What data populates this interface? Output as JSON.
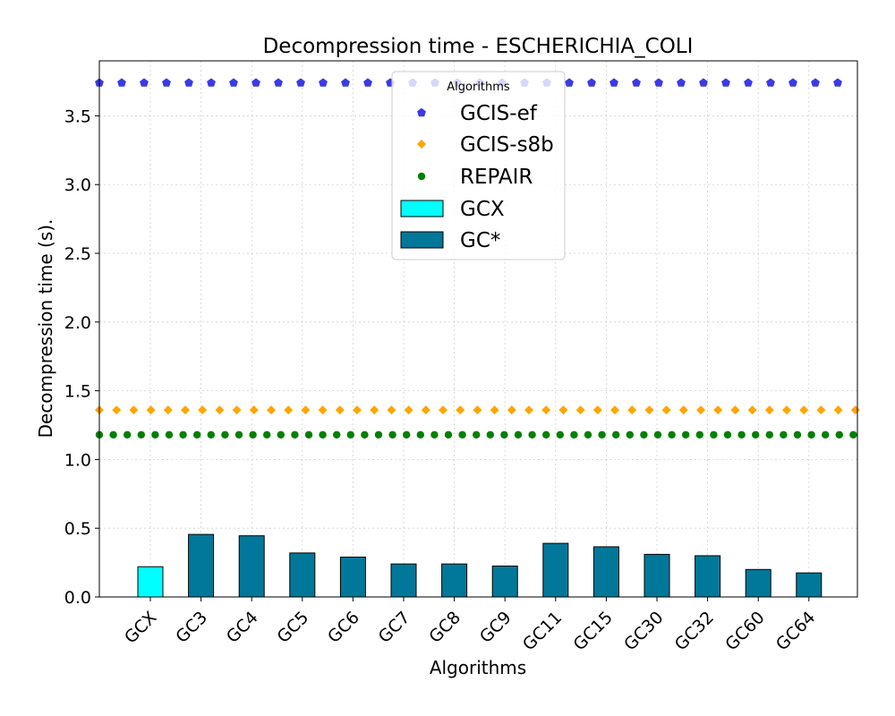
{
  "chart_data": {
    "type": "bar",
    "title": "Decompression time -  ESCHERICHIA_COLI",
    "xlabel": "Algorithms",
    "ylabel": "Decompression time (s).",
    "ylim": [
      0,
      3.9
    ],
    "yticks": [
      "0.0",
      "0.5",
      "1.0",
      "1.5",
      "2.0",
      "2.5",
      "3.0",
      "3.5"
    ],
    "grid": true,
    "categories": [
      "GCX",
      "GC3",
      "GC4",
      "GC5",
      "GC6",
      "GC7",
      "GC8",
      "GC9",
      "GC11",
      "GC15",
      "GC30",
      "GC32",
      "GC60",
      "GC64"
    ],
    "bars": [
      {
        "name": "GCX",
        "color": "#00ffff",
        "values": [
          0.22,
          null,
          null,
          null,
          null,
          null,
          null,
          null,
          null,
          null,
          null,
          null,
          null,
          null
        ]
      },
      {
        "name": "GC*",
        "color": "#017899",
        "values": [
          null,
          0.455,
          0.445,
          0.32,
          0.29,
          0.24,
          0.24,
          0.225,
          0.39,
          0.365,
          0.31,
          0.3,
          0.2,
          0.175
        ]
      }
    ],
    "reference_lines": [
      {
        "name": "GCIS-ef",
        "value": 3.74,
        "color": "#3a3ae6",
        "marker": "pentagon"
      },
      {
        "name": "GCIS-s8b",
        "value": 1.36,
        "color": "#ffa500",
        "marker": "diamond"
      },
      {
        "name": "REPAIR",
        "value": 1.18,
        "color": "#008000",
        "marker": "circle"
      }
    ],
    "legend": {
      "title": "Algorithms",
      "placement": "top-center",
      "entries": [
        "GCIS-ef",
        "GCIS-s8b",
        "REPAIR",
        "GCX",
        "GC*"
      ]
    }
  }
}
